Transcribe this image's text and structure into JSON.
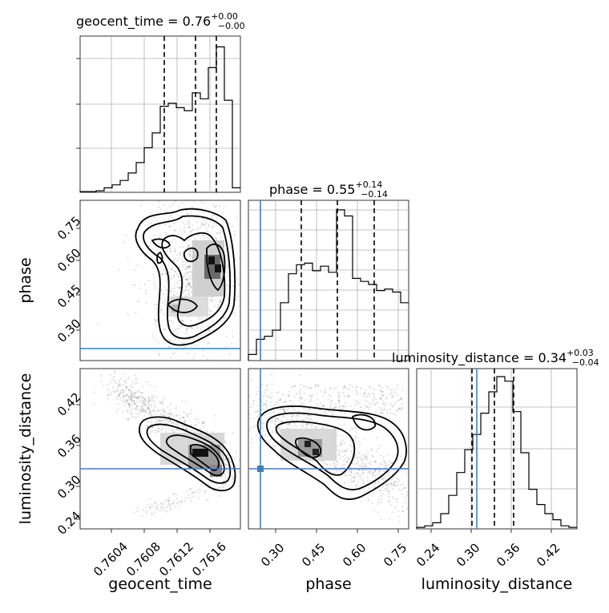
{
  "chart_data": [
    {
      "type": "histogram",
      "panel": "geocent_time",
      "title": "geocent_time = 0.76",
      "title_err": {
        "plus": "+0.00",
        "minus": "−0.00"
      },
      "xlim": [
        0.76005,
        0.7619
      ],
      "bins_x": [
        0.76005,
        0.76014,
        0.76024,
        0.76033,
        0.76042,
        0.76052,
        0.76061,
        0.7607,
        0.76079,
        0.76089,
        0.76098,
        0.76107,
        0.76116,
        0.76126,
        0.76135,
        0.76144,
        0.76153,
        0.76162,
        0.76172,
        0.76181,
        0.7619
      ],
      "counts": [
        0.005,
        0.005,
        0.01,
        0.03,
        0.05,
        0.08,
        0.13,
        0.2,
        0.3,
        0.4,
        0.58,
        0.6,
        0.57,
        0.55,
        0.67,
        0.63,
        0.84,
        0.98,
        0.62,
        0.03
      ],
      "quantiles": [
        0.76107,
        0.76143,
        0.76166
      ]
    },
    {
      "type": "histogram",
      "panel": "phase",
      "title": "phase = 0.55",
      "title_err": {
        "plus": "+0.14",
        "minus": "−0.14"
      },
      "xlim": [
        0.2,
        0.79
      ],
      "bins_x": [
        0.2,
        0.23,
        0.259,
        0.289,
        0.318,
        0.348,
        0.377,
        0.407,
        0.436,
        0.466,
        0.495,
        0.525,
        0.554,
        0.584,
        0.613,
        0.643,
        0.672,
        0.702,
        0.731,
        0.761,
        0.79
      ],
      "counts": [
        0.04,
        0.14,
        0.16,
        0.2,
        0.38,
        0.57,
        0.63,
        0.64,
        0.59,
        0.62,
        0.58,
        0.99,
        0.95,
        0.54,
        0.52,
        0.5,
        0.46,
        0.47,
        0.45,
        0.38
      ],
      "quantiles": [
        0.41,
        0.546,
        0.686
      ],
      "truth": 0.25,
      "ticks": [
        "0.30",
        "0.45",
        "0.60",
        "0.75"
      ],
      "xlabel": "phase"
    },
    {
      "type": "histogram",
      "panel": "luminosity_distance",
      "title": "luminosity_distance = 0.34",
      "title_err": {
        "plus": "+0.03",
        "minus": "−0.04"
      },
      "xlim": [
        0.22,
        0.46
      ],
      "bins_x": [
        0.22,
        0.232,
        0.244,
        0.256,
        0.268,
        0.28,
        0.292,
        0.304,
        0.316,
        0.328,
        0.34,
        0.352,
        0.364,
        0.376,
        0.388,
        0.4,
        0.412,
        0.424,
        0.436,
        0.448,
        0.46
      ],
      "counts": [
        0.01,
        0.02,
        0.04,
        0.1,
        0.22,
        0.37,
        0.52,
        0.62,
        0.76,
        0.9,
        1.0,
        0.97,
        0.77,
        0.5,
        0.26,
        0.16,
        0.1,
        0.06,
        0.02,
        0.01
      ],
      "quantiles": [
        0.305,
        0.342,
        0.377
      ],
      "truth": 0.315,
      "ticks": [
        "0.24",
        "0.30",
        "0.36",
        "0.42"
      ],
      "xlabel": "luminosity_distance"
    },
    {
      "type": "scatter",
      "panel": "phase vs geocent_time",
      "x_param": "geocent_time",
      "y_param": "phase",
      "truth_y": 0.25,
      "ylim": [
        0.2,
        0.79
      ],
      "yticks": [
        "0.30",
        "0.45",
        "0.60",
        "0.75"
      ],
      "ylabel": "phase"
    },
    {
      "type": "scatter",
      "panel": "luminosity_distance vs geocent_time",
      "x_param": "geocent_time",
      "y_param": "luminosity_distance",
      "truth_y": 0.315,
      "ylim": [
        0.22,
        0.46
      ],
      "xlim": [
        0.76005,
        0.7619
      ],
      "xticks": [
        "0.7604",
        "0.7608",
        "0.7612",
        "0.7616"
      ],
      "yticks": [
        "0.24",
        "0.30",
        "0.36",
        "0.42"
      ],
      "xlabel": "geocent_time",
      "ylabel": "luminosity_distance"
    },
    {
      "type": "scatter",
      "panel": "luminosity_distance vs phase",
      "x_param": "phase",
      "y_param": "luminosity_distance",
      "truth": [
        0.25,
        0.315
      ]
    }
  ]
}
